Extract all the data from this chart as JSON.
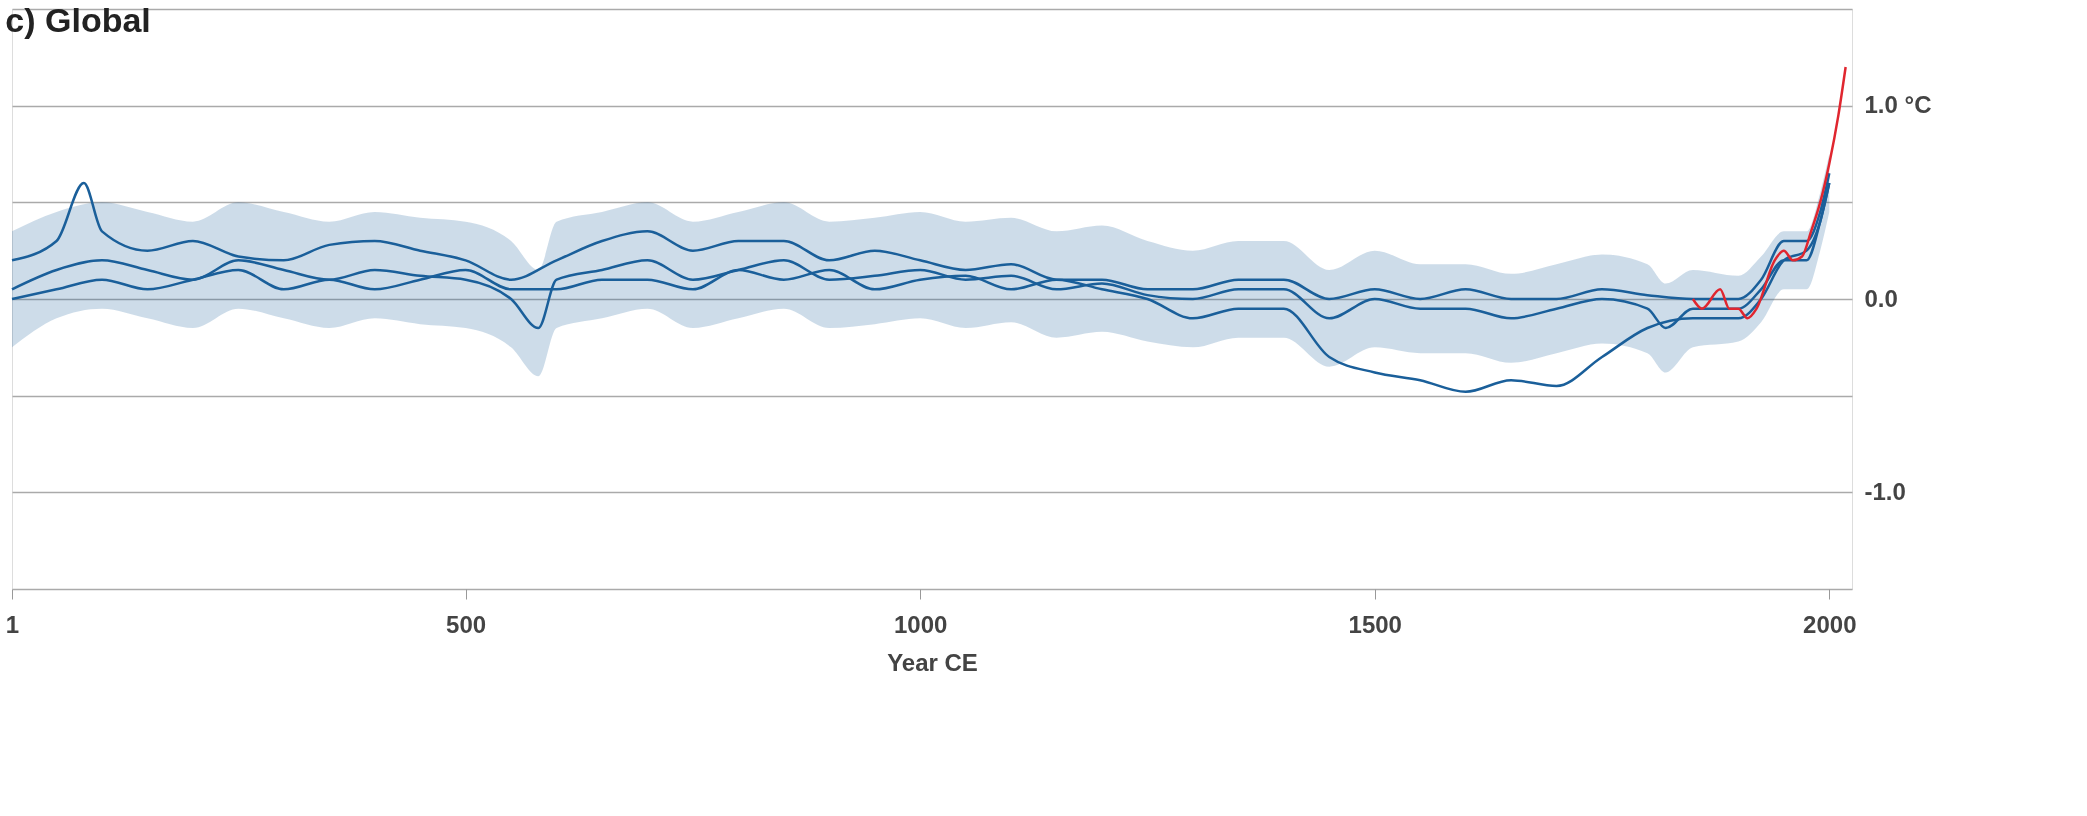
{
  "chart_data": {
    "type": "line",
    "title": "c) Global",
    "xlabel": "Year CE",
    "xlim": [
      1,
      2025
    ],
    "xticks": [
      1,
      500,
      1000,
      1500,
      2000
    ],
    "ylim": [
      -1.5,
      1.5
    ],
    "yticks": [
      {
        "value": -1.5,
        "label": null
      },
      {
        "value": -1.0,
        "label": "-1.0"
      },
      {
        "value": -0.5,
        "label": null
      },
      {
        "value": 0.0,
        "label": "0.0"
      },
      {
        "value": 0.5,
        "label": null
      },
      {
        "value": 1.0,
        "label": "1.0 °C"
      },
      {
        "value": 1.5,
        "label": null
      }
    ],
    "grid": "y",
    "line_style": "solid",
    "marker": "none",
    "series": [
      {
        "color": "#1a5f9a",
        "x": [
          1,
          50,
          100,
          150,
          200,
          250,
          300,
          350,
          400,
          450,
          500,
          550,
          580,
          600,
          650,
          700,
          750,
          800,
          850,
          900,
          950,
          1000,
          1050,
          1100,
          1150,
          1200,
          1250,
          1300,
          1350,
          1400,
          1450,
          1500,
          1550,
          1600,
          1650,
          1700,
          1750,
          1800,
          1820,
          1850,
          1900,
          1925,
          1950,
          1975,
          1990,
          2000
        ],
        "values": [
          0.05,
          0.15,
          0.2,
          0.15,
          0.1,
          0.2,
          0.15,
          0.1,
          0.15,
          0.12,
          0.1,
          0.0,
          -0.15,
          0.1,
          0.15,
          0.2,
          0.1,
          0.15,
          0.2,
          0.1,
          0.12,
          0.15,
          0.1,
          0.12,
          0.05,
          0.08,
          0.02,
          0.0,
          0.05,
          0.05,
          -0.1,
          0.0,
          -0.05,
          -0.05,
          -0.1,
          -0.05,
          0.0,
          -0.05,
          -0.15,
          -0.05,
          -0.05,
          0.05,
          0.2,
          0.2,
          0.4,
          0.6
        ],
        "lower": [
          -0.25,
          -0.1,
          -0.05,
          -0.1,
          -0.15,
          -0.05,
          -0.1,
          -0.15,
          -0.1,
          -0.13,
          -0.15,
          -0.25,
          -0.4,
          -0.15,
          -0.1,
          -0.05,
          -0.15,
          -0.1,
          -0.05,
          -0.15,
          -0.13,
          -0.1,
          -0.15,
          -0.12,
          -0.2,
          -0.17,
          -0.22,
          -0.25,
          -0.2,
          -0.2,
          -0.35,
          -0.25,
          -0.28,
          -0.28,
          -0.33,
          -0.28,
          -0.23,
          -0.28,
          -0.38,
          -0.25,
          -0.22,
          -0.12,
          0.05,
          0.05,
          0.25,
          0.45
        ],
        "upper": [
          0.35,
          0.45,
          0.5,
          0.45,
          0.4,
          0.5,
          0.45,
          0.4,
          0.45,
          0.42,
          0.4,
          0.3,
          0.15,
          0.4,
          0.45,
          0.5,
          0.4,
          0.45,
          0.5,
          0.4,
          0.42,
          0.45,
          0.4,
          0.42,
          0.35,
          0.38,
          0.3,
          0.25,
          0.3,
          0.3,
          0.15,
          0.25,
          0.18,
          0.18,
          0.13,
          0.18,
          0.23,
          0.18,
          0.08,
          0.15,
          0.12,
          0.22,
          0.35,
          0.35,
          0.55,
          0.75
        ]
      },
      {
        "color": "#1a5f9a",
        "x": [
          1,
          50,
          80,
          100,
          150,
          200,
          250,
          300,
          350,
          400,
          450,
          500,
          550,
          600,
          650,
          700,
          750,
          800,
          850,
          900,
          950,
          1000,
          1050,
          1100,
          1150,
          1200,
          1250,
          1300,
          1350,
          1400,
          1450,
          1500,
          1550,
          1600,
          1650,
          1700,
          1750,
          1800,
          1850,
          1900,
          1925,
          1950,
          1975,
          1990,
          2000
        ],
        "values": [
          0.2,
          0.3,
          0.6,
          0.35,
          0.25,
          0.3,
          0.22,
          0.2,
          0.28,
          0.3,
          0.25,
          0.2,
          0.1,
          0.2,
          0.3,
          0.35,
          0.25,
          0.3,
          0.3,
          0.2,
          0.25,
          0.2,
          0.15,
          0.18,
          0.1,
          0.1,
          0.05,
          0.05,
          0.1,
          0.1,
          0.0,
          0.05,
          0.0,
          0.05,
          0.0,
          0.0,
          0.05,
          0.02,
          0.0,
          0.0,
          0.1,
          0.3,
          0.3,
          0.45,
          0.65
        ]
      },
      {
        "color": "#1a5f9a",
        "x": [
          1,
          50,
          100,
          150,
          200,
          250,
          300,
          350,
          400,
          450,
          500,
          550,
          600,
          650,
          700,
          750,
          800,
          850,
          900,
          950,
          1000,
          1050,
          1100,
          1150,
          1200,
          1250,
          1300,
          1350,
          1400,
          1450,
          1500,
          1550,
          1600,
          1650,
          1700,
          1750,
          1800,
          1850,
          1900,
          1925,
          1950,
          1975,
          1990,
          2000
        ],
        "values": [
          0.0,
          0.05,
          0.1,
          0.05,
          0.1,
          0.15,
          0.05,
          0.1,
          0.05,
          0.1,
          0.15,
          0.05,
          0.05,
          0.1,
          0.1,
          0.05,
          0.15,
          0.1,
          0.15,
          0.05,
          0.1,
          0.12,
          0.05,
          0.1,
          0.05,
          0.0,
          -0.1,
          -0.05,
          -0.05,
          -0.3,
          -0.38,
          -0.42,
          -0.48,
          -0.42,
          -0.45,
          -0.3,
          -0.15,
          -0.1,
          -0.1,
          0.0,
          0.2,
          0.25,
          0.4,
          0.6
        ]
      },
      {
        "color": "#e0262f",
        "x": [
          1850,
          1860,
          1880,
          1890,
          1900,
          1910,
          1920,
          1940,
          1950,
          1960,
          1970,
          1980,
          1990,
          2000,
          2010,
          2018
        ],
        "values": [
          0.0,
          -0.05,
          0.05,
          -0.05,
          -0.05,
          -0.1,
          -0.05,
          0.2,
          0.25,
          0.2,
          0.22,
          0.35,
          0.5,
          0.7,
          0.95,
          1.2
        ]
      }
    ]
  }
}
